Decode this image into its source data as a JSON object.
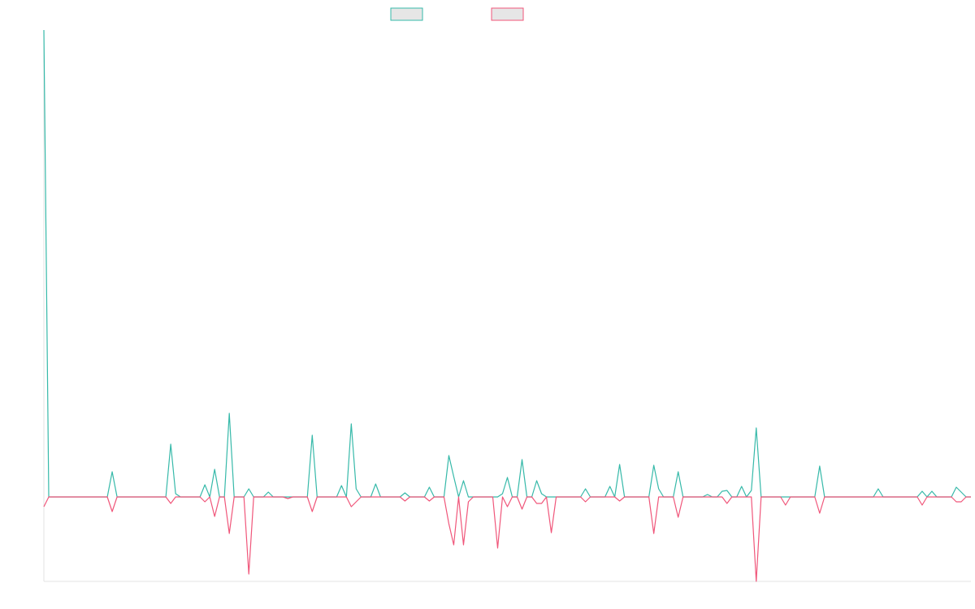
{
  "chart_data": {
    "type": "line",
    "ylim": [
      -104,
      575
    ],
    "series": [
      {
        "color": "#36b9a9",
        "values": [
          575,
          0,
          0,
          0,
          0,
          0,
          0,
          0,
          0,
          0,
          0,
          0,
          0,
          0,
          31,
          0,
          0,
          0,
          0,
          0,
          0,
          0,
          0,
          0,
          0,
          0,
          65,
          4,
          0,
          0,
          0,
          0,
          0,
          15,
          0,
          34,
          0,
          0,
          103,
          0,
          0,
          0,
          10,
          0,
          0,
          0,
          6,
          0,
          0,
          0,
          0,
          0,
          0,
          0,
          0,
          76,
          0,
          0,
          0,
          0,
          0,
          14,
          0,
          90,
          10,
          0,
          0,
          0,
          16,
          0,
          0,
          0,
          0,
          0,
          5,
          0,
          0,
          0,
          0,
          12,
          0,
          0,
          0,
          51,
          25,
          0,
          20,
          0,
          0,
          0,
          0,
          0,
          0,
          0,
          4,
          24,
          0,
          0,
          46,
          0,
          0,
          20,
          4,
          0,
          0,
          0,
          0,
          0,
          0,
          0,
          0,
          10,
          0,
          0,
          0,
          0,
          13,
          0,
          40,
          0,
          0,
          0,
          0,
          0,
          0,
          39,
          10,
          0,
          0,
          0,
          31,
          0,
          0,
          0,
          0,
          0,
          3,
          0,
          0,
          7,
          8,
          0,
          0,
          13,
          0,
          8,
          85,
          0,
          0,
          0,
          0,
          0,
          0,
          0,
          0,
          0,
          0,
          0,
          0,
          38,
          0,
          0,
          0,
          0,
          0,
          0,
          0,
          0,
          0,
          0,
          0,
          10,
          0,
          0,
          0,
          0,
          0,
          0,
          0,
          0,
          7,
          0,
          7,
          0,
          0,
          0,
          0,
          12,
          6,
          0,
          0
        ]
      },
      {
        "color": "#f0567a",
        "values": [
          -12,
          0,
          0,
          0,
          0,
          0,
          0,
          0,
          0,
          0,
          0,
          0,
          0,
          0,
          -18,
          0,
          0,
          0,
          0,
          0,
          0,
          0,
          0,
          0,
          0,
          0,
          -8,
          0,
          0,
          0,
          0,
          0,
          0,
          -6,
          0,
          -24,
          0,
          0,
          -45,
          0,
          0,
          0,
          -95,
          0,
          0,
          0,
          0,
          0,
          0,
          0,
          -2,
          0,
          0,
          0,
          0,
          -18,
          0,
          0,
          0,
          0,
          0,
          0,
          0,
          -12,
          -6,
          0,
          0,
          0,
          0,
          0,
          0,
          0,
          0,
          0,
          -5,
          0,
          0,
          0,
          0,
          -5,
          0,
          0,
          0,
          -33,
          -59,
          0,
          -59,
          -6,
          0,
          0,
          0,
          0,
          0,
          -63,
          0,
          -12,
          0,
          0,
          -15,
          0,
          0,
          -8,
          -8,
          0,
          -44,
          0,
          0,
          0,
          0,
          0,
          0,
          -6,
          0,
          0,
          0,
          0,
          0,
          0,
          -5,
          0,
          0,
          0,
          0,
          0,
          0,
          -45,
          0,
          0,
          0,
          0,
          -25,
          0,
          0,
          0,
          0,
          0,
          0,
          0,
          0,
          0,
          -8,
          0,
          0,
          0,
          0,
          0,
          -104,
          0,
          0,
          0,
          0,
          0,
          -10,
          0,
          0,
          0,
          0,
          0,
          0,
          -20,
          0,
          0,
          0,
          0,
          0,
          0,
          0,
          0,
          0,
          0,
          0,
          0,
          0,
          0,
          0,
          0,
          0,
          0,
          0,
          0,
          -10,
          0,
          0,
          0,
          0,
          0,
          0,
          -6,
          -6,
          0,
          0
        ]
      }
    ]
  }
}
